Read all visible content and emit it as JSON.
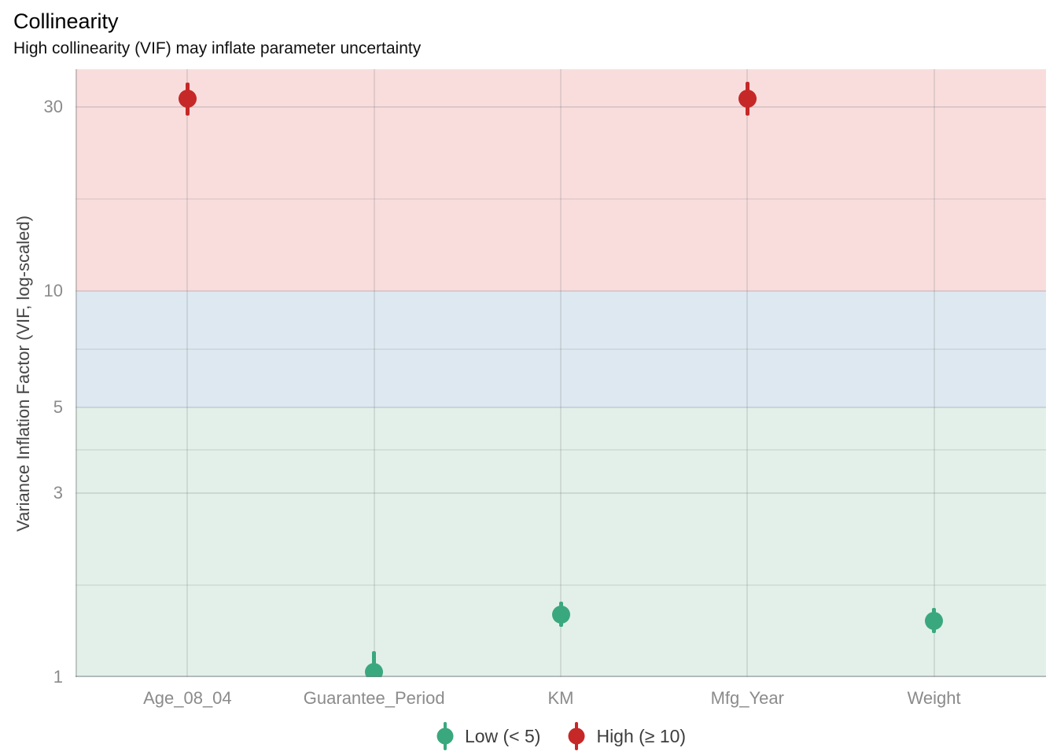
{
  "title": "Collinearity",
  "subtitle": "High collinearity (VIF) may inflate parameter uncertainty",
  "chart_data": {
    "type": "scatter",
    "subtype": "pointrange",
    "title": "Collinearity",
    "subtitle": "High collinearity (VIF) may inflate parameter uncertainty",
    "xlabel": "",
    "ylabel": "Variance Inflation Factor (VIF, log-scaled)",
    "y_scale": "log10",
    "y_ticks": [
      1,
      3,
      5,
      10,
      30
    ],
    "ylim": [
      1,
      37.5
    ],
    "grid": "on",
    "categories": [
      "Age_08_04",
      "Guarantee_Period",
      "KM",
      "Mfg_Year",
      "Weight"
    ],
    "points": [
      {
        "category": "Age_08_04",
        "vif": 31.5,
        "ci_low": 28.4,
        "ci_high": 34.6,
        "status": "High"
      },
      {
        "category": "Guarantee_Period",
        "vif": 1.03,
        "ci_low": 1.0,
        "ci_high": 1.17,
        "status": "Low"
      },
      {
        "category": "KM",
        "vif": 1.45,
        "ci_low": 1.35,
        "ci_high": 1.57,
        "status": "Low"
      },
      {
        "category": "Mfg_Year",
        "vif": 31.4,
        "ci_low": 28.4,
        "ci_high": 34.8,
        "status": "High"
      },
      {
        "category": "Weight",
        "vif": 1.4,
        "ci_low": 1.3,
        "ci_high": 1.51,
        "status": "Low"
      }
    ],
    "bands": [
      {
        "name": "high-vif-zone",
        "from": 10,
        "to": 37.5,
        "color": "#f9dddd"
      },
      {
        "name": "mid-vif-zone",
        "from": 5,
        "to": 10,
        "color": "#dde8f0"
      },
      {
        "name": "low-vif-zone",
        "from": 1,
        "to": 5,
        "color": "#e3f0ea"
      }
    ],
    "status_colors": {
      "Low": "#3aa87e",
      "High": "#c62828"
    },
    "legend": {
      "position": "bottom",
      "entries": [
        {
          "label": "Low (< 5)",
          "status": "Low",
          "color": "#3aa87e"
        },
        {
          "label": "High (≥ 10)",
          "status": "High",
          "color": "#c62828"
        }
      ]
    }
  }
}
